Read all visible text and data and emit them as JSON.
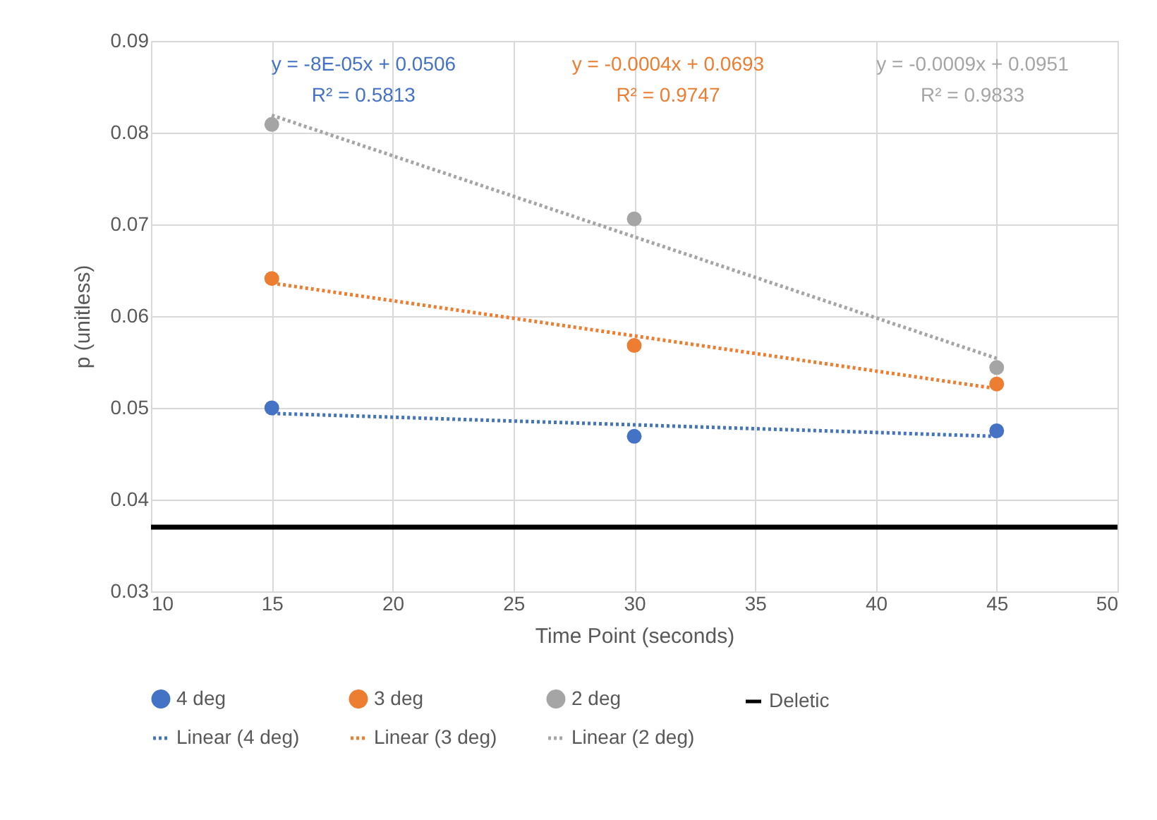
{
  "chart_data": {
    "type": "scatter",
    "xlabel": "Time Point (seconds)",
    "ylabel": "p (unitless)",
    "xlim": [
      10,
      50
    ],
    "xticks": [
      10,
      15,
      20,
      25,
      30,
      35,
      40,
      45,
      50
    ],
    "ylim": [
      0.03,
      0.09
    ],
    "yticks": [
      0.03,
      0.04,
      0.05,
      0.06,
      0.07,
      0.08,
      0.09
    ],
    "grid": true,
    "legend": "bottom",
    "series": [
      {
        "name": "4 deg",
        "marker": "circle",
        "color": "#4472c4",
        "x": [
          15,
          30,
          45
        ],
        "values": [
          0.05,
          0.0469,
          0.0475
        ]
      },
      {
        "name": "3 deg",
        "marker": "circle",
        "color": "#ed7d31",
        "x": [
          15,
          30,
          45
        ],
        "values": [
          0.0641,
          0.0568,
          0.0526
        ]
      },
      {
        "name": "2 deg",
        "marker": "circle",
        "color": "#a5a5a5",
        "x": [
          15,
          30,
          45
        ],
        "values": [
          0.0809,
          0.0706,
          0.0544
        ]
      },
      {
        "name": "Deletic",
        "type": "line",
        "line_style": "solid",
        "color": "#000000",
        "x": [
          10,
          50
        ],
        "values": [
          0.037,
          0.037
        ]
      },
      {
        "name": "Linear (4 deg)",
        "type": "line",
        "line_style": "dotted",
        "color": "#4472c4",
        "x": [
          15,
          45
        ],
        "values": [
          0.0494,
          0.0469
        ]
      },
      {
        "name": "Linear (3 deg)",
        "type": "line",
        "line_style": "dotted",
        "color": "#ed7d31",
        "x": [
          15,
          45
        ],
        "values": [
          0.0636,
          0.0521
        ]
      },
      {
        "name": "Linear (2 deg)",
        "type": "line",
        "line_style": "dotted",
        "color": "#a5a5a5",
        "x": [
          15,
          45
        ],
        "values": [
          0.0819,
          0.0554
        ]
      }
    ],
    "annotations": [
      "y = -8E-05x + 0.0506\nR² = 0.5813",
      "y = -0.0004x + 0.0693\nR² = 0.9747",
      "y = -0.0009x + 0.0951\nR² = 0.9833"
    ]
  }
}
